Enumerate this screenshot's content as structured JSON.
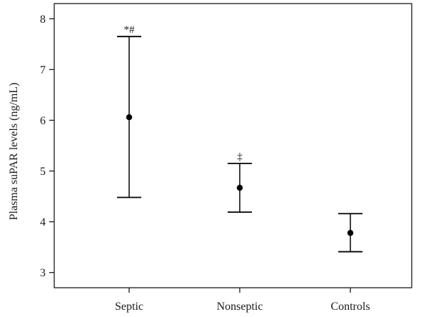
{
  "chart_data": {
    "type": "errorbar",
    "ylabel": "Plasma suPAR levels (ng/mL)",
    "xlabel": "",
    "ylim": [
      2.7,
      8.3
    ],
    "yticks": [
      3,
      4,
      5,
      6,
      7,
      8
    ],
    "categories": [
      "Septic",
      "Nonseptic",
      "Controls"
    ],
    "points": [
      {
        "category": "Septic",
        "mean": 6.06,
        "lower": 4.48,
        "upper": 7.65,
        "annotation": "*#"
      },
      {
        "category": "Nonseptic",
        "mean": 4.67,
        "lower": 4.19,
        "upper": 5.15,
        "annotation": "‡"
      },
      {
        "category": "Controls",
        "mean": 3.78,
        "lower": 3.41,
        "upper": 4.16,
        "annotation": ""
      }
    ],
    "grid": false,
    "legend": "none",
    "colors": {
      "marks": "#000000",
      "axis": "#1a1a1a"
    }
  }
}
